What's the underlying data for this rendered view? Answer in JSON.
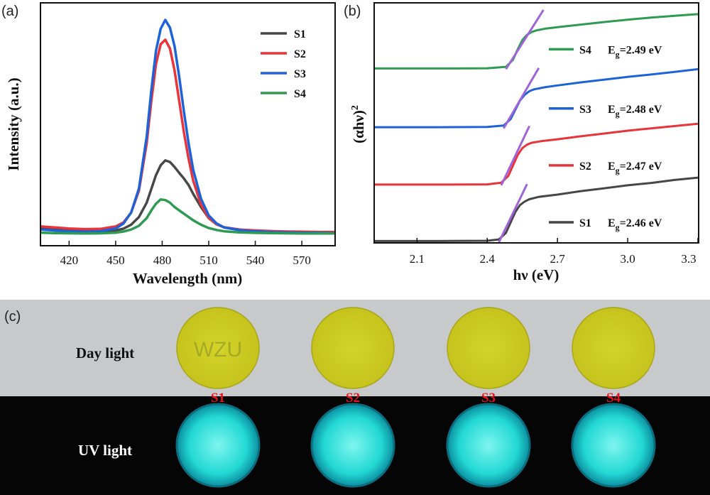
{
  "chart_data": [
    {
      "panel": "(a)",
      "type": "line",
      "xlabel": "Wavelength (nm)",
      "ylabel": "Intensity (a.u.)",
      "xlim": [
        402,
        591
      ],
      "ylim": [
        0,
        1.0
      ],
      "xticks": [
        420,
        450,
        480,
        510,
        540,
        570
      ],
      "yticks_shown": false,
      "grid": false,
      "legend_position": "top-right",
      "x": [
        402,
        410,
        420,
        430,
        440,
        450,
        455,
        460,
        465,
        470,
        473,
        476,
        479,
        482,
        485,
        488,
        491,
        494,
        497,
        500,
        505,
        510,
        515,
        520,
        530,
        540,
        550,
        560,
        570,
        580,
        591
      ],
      "series": [
        {
          "name": "S1",
          "color": "#474747",
          "values": [
            0.042,
            0.038,
            0.034,
            0.031,
            0.029,
            0.034,
            0.042,
            0.06,
            0.095,
            0.16,
            0.222,
            0.285,
            0.33,
            0.352,
            0.345,
            0.322,
            0.295,
            0.27,
            0.24,
            0.2,
            0.14,
            0.09,
            0.062,
            0.048,
            0.037,
            0.032,
            0.029,
            0.027,
            0.025,
            0.024,
            0.023
          ]
        },
        {
          "name": "S2",
          "color": "#e8343a",
          "values": [
            0.052,
            0.048,
            0.043,
            0.04,
            0.041,
            0.052,
            0.07,
            0.115,
            0.215,
            0.43,
            0.62,
            0.79,
            0.88,
            0.9,
            0.86,
            0.76,
            0.62,
            0.48,
            0.36,
            0.26,
            0.152,
            0.09,
            0.062,
            0.048,
            0.038,
            0.034,
            0.031,
            0.029,
            0.028,
            0.027,
            0.027
          ]
        },
        {
          "name": "S3",
          "color": "#1d62d8",
          "values": [
            0.038,
            0.034,
            0.03,
            0.028,
            0.03,
            0.043,
            0.065,
            0.115,
            0.225,
            0.46,
            0.67,
            0.85,
            0.95,
            0.99,
            0.955,
            0.87,
            0.73,
            0.575,
            0.43,
            0.31,
            0.178,
            0.102,
            0.066,
            0.047,
            0.035,
            0.03,
            0.027,
            0.025,
            0.024,
            0.023,
            0.022
          ]
        },
        {
          "name": "S4",
          "color": "#2e9a52",
          "values": [
            0.024,
            0.022,
            0.021,
            0.02,
            0.021,
            0.024,
            0.029,
            0.038,
            0.055,
            0.09,
            0.125,
            0.155,
            0.175,
            0.172,
            0.16,
            0.14,
            0.125,
            0.11,
            0.095,
            0.08,
            0.06,
            0.045,
            0.036,
            0.03,
            0.025,
            0.023,
            0.022,
            0.021,
            0.02,
            0.02,
            0.02
          ]
        }
      ]
    },
    {
      "panel": "(b)",
      "type": "line",
      "xlabel": "hν (eV)",
      "ylabel": "(αhν)",
      "ylabel_sup": "2",
      "xlim": [
        1.92,
        3.3
      ],
      "ylim": [
        0,
        1.0
      ],
      "xticks": [
        "2.1",
        "2.4",
        "2.7",
        "3.0",
        "3.3"
      ],
      "yticks_shown": false,
      "grid": false,
      "tangent_color": "#a064d8",
      "series": [
        {
          "name": "S1",
          "color": "#474747",
          "eg_label": "E",
          "eg_sub": "g",
          "eg_value": "=2.46 eV",
          "offset": 0.0,
          "edge": 2.46,
          "tangent": [
            [
              2.45,
              0.0
            ],
            [
              2.57,
              0.25
            ]
          ],
          "x": [
            1.92,
            2.2,
            2.4,
            2.45,
            2.48,
            2.5,
            2.52,
            2.54,
            2.56,
            2.58,
            2.62,
            2.7,
            2.8,
            2.9,
            3.0,
            3.1,
            3.2,
            3.3
          ],
          "values": [
            0.005,
            0.005,
            0.006,
            0.012,
            0.04,
            0.085,
            0.13,
            0.16,
            0.175,
            0.185,
            0.195,
            0.205,
            0.22,
            0.232,
            0.245,
            0.255,
            0.268,
            0.278
          ]
        },
        {
          "name": "S2",
          "color": "#e8343a",
          "eg_label": "E",
          "eg_sub": "g",
          "eg_value": "=2.47 eV",
          "offset": 0.245,
          "edge": 2.47,
          "tangent": [
            [
              2.46,
              0.245
            ],
            [
              2.58,
              0.5
            ]
          ],
          "x": [
            1.92,
            2.2,
            2.4,
            2.46,
            2.49,
            2.51,
            2.53,
            2.55,
            2.57,
            2.59,
            2.63,
            2.7,
            2.8,
            2.9,
            3.0,
            3.1,
            3.2,
            3.3
          ],
          "values": [
            0.248,
            0.248,
            0.249,
            0.256,
            0.285,
            0.33,
            0.375,
            0.405,
            0.42,
            0.428,
            0.435,
            0.443,
            0.456,
            0.468,
            0.48,
            0.49,
            0.5,
            0.51
          ]
        },
        {
          "name": "S3",
          "color": "#1d62d8",
          "eg_label": "E",
          "eg_sub": "g",
          "eg_value": "=2.48 eV",
          "offset": 0.49,
          "edge": 2.48,
          "tangent": [
            [
              2.47,
              0.49
            ],
            [
              2.62,
              0.75
            ]
          ],
          "x": [
            1.92,
            2.2,
            2.4,
            2.47,
            2.5,
            2.52,
            2.54,
            2.56,
            2.58,
            2.6,
            2.65,
            2.7,
            2.8,
            2.9,
            3.0,
            3.1,
            3.2,
            3.3
          ],
          "values": [
            0.495,
            0.495,
            0.496,
            0.502,
            0.53,
            0.57,
            0.61,
            0.635,
            0.65,
            0.658,
            0.668,
            0.675,
            0.688,
            0.7,
            0.712,
            0.722,
            0.733,
            0.745
          ]
        },
        {
          "name": "S4",
          "color": "#2e9a52",
          "eg_label": "E",
          "eg_sub": "g",
          "eg_value": "=2.49 eV",
          "offset": 0.745,
          "edge": 2.49,
          "tangent": [
            [
              2.48,
              0.745
            ],
            [
              2.64,
              1.0
            ]
          ],
          "x": [
            1.92,
            2.2,
            2.4,
            2.48,
            2.51,
            2.53,
            2.55,
            2.57,
            2.59,
            2.61,
            2.65,
            2.7,
            2.8,
            2.9,
            3.0,
            3.1,
            3.2,
            3.3
          ],
          "values": [
            0.748,
            0.748,
            0.749,
            0.755,
            0.785,
            0.83,
            0.87,
            0.893,
            0.905,
            0.912,
            0.92,
            0.926,
            0.937,
            0.948,
            0.958,
            0.967,
            0.975,
            0.982
          ]
        }
      ]
    }
  ],
  "photo_panel": {
    "panel": "(c)",
    "day_label": "Day light",
    "uv_label": "UV light",
    "watermark": "WZU",
    "samples": [
      "S1",
      "S2",
      "S3",
      "S4"
    ],
    "colors": {
      "day_background": "#c8c9cb",
      "disc_yellow": "#c6c41c",
      "uv_background": "#050505",
      "uv_glow": "#22d8d4",
      "label_red": "#e8141c"
    }
  }
}
